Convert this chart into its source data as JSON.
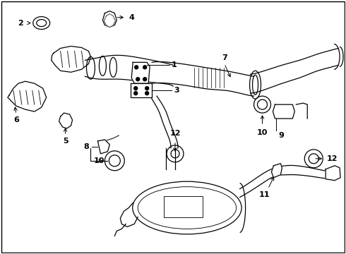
{
  "bg_color": "#ffffff",
  "border_color": "#000000",
  "fig_width": 4.9,
  "fig_height": 3.6,
  "dpi": 100,
  "lw": 0.9,
  "color": "#000000"
}
